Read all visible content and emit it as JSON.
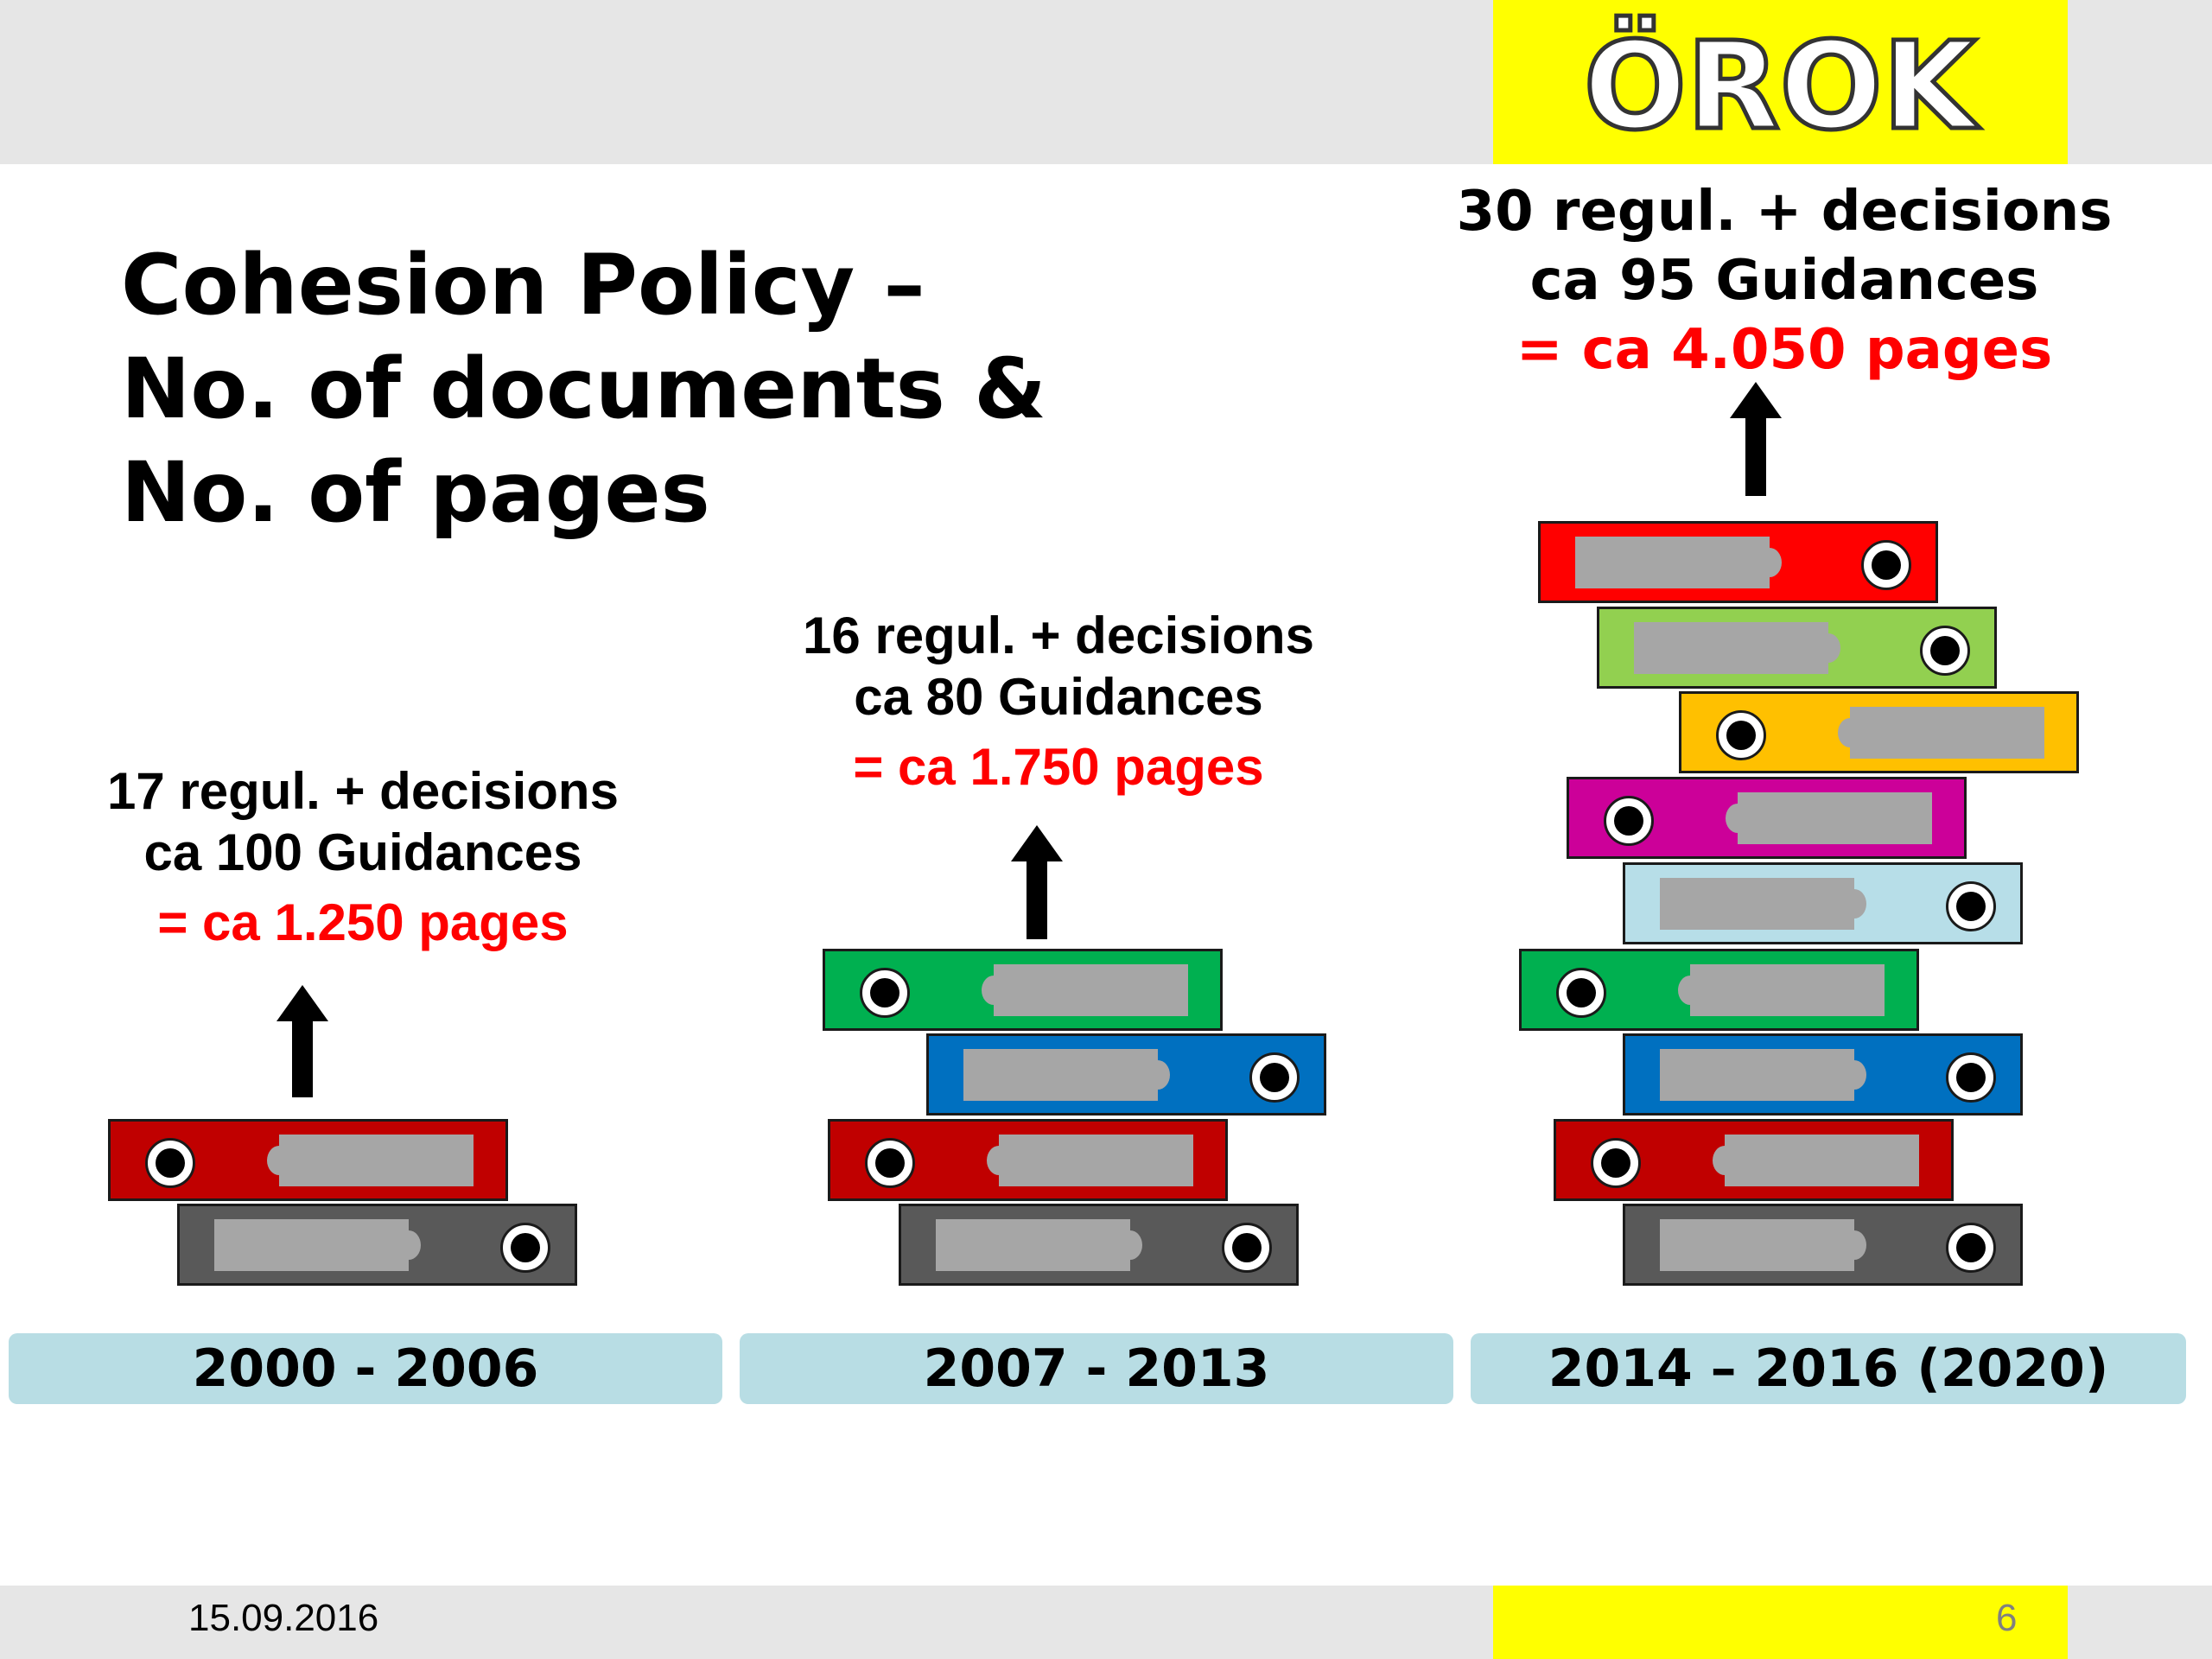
{
  "header": {
    "logo_text": "ÖROK"
  },
  "title": {
    "line1": "Cohesion Policy –",
    "line2": "No. of documents &",
    "line3": "No. of pages"
  },
  "columns": [
    {
      "regulations": "17 regul. + decisions",
      "guidances": "ca 100 Guidances",
      "pages": "= ca 1.250 pages",
      "period": "2000 - 2006",
      "binder_colors": [
        "#c00000",
        "#595959"
      ]
    },
    {
      "regulations": "16 regul. + decisions",
      "guidances": "ca 80 Guidances",
      "pages": "= ca 1.750 pages",
      "period": "2007 - 2013",
      "binder_colors": [
        "#00b050",
        "#0070c0",
        "#c00000",
        "#595959"
      ]
    },
    {
      "regulations": "30 regul. + decisions",
      "guidances": "ca 95 Guidances",
      "pages": "= ca 4.050 pages",
      "period": "2014 – 2016 (2020)",
      "binder_colors": [
        "#ff0000",
        "#92d050",
        "#ffc000",
        "#cc0099",
        "#b7dee8",
        "#00b050",
        "#0070c0",
        "#c00000",
        "#595959"
      ]
    }
  ],
  "footer": {
    "date": "15.09.2016",
    "page_number": "6"
  }
}
